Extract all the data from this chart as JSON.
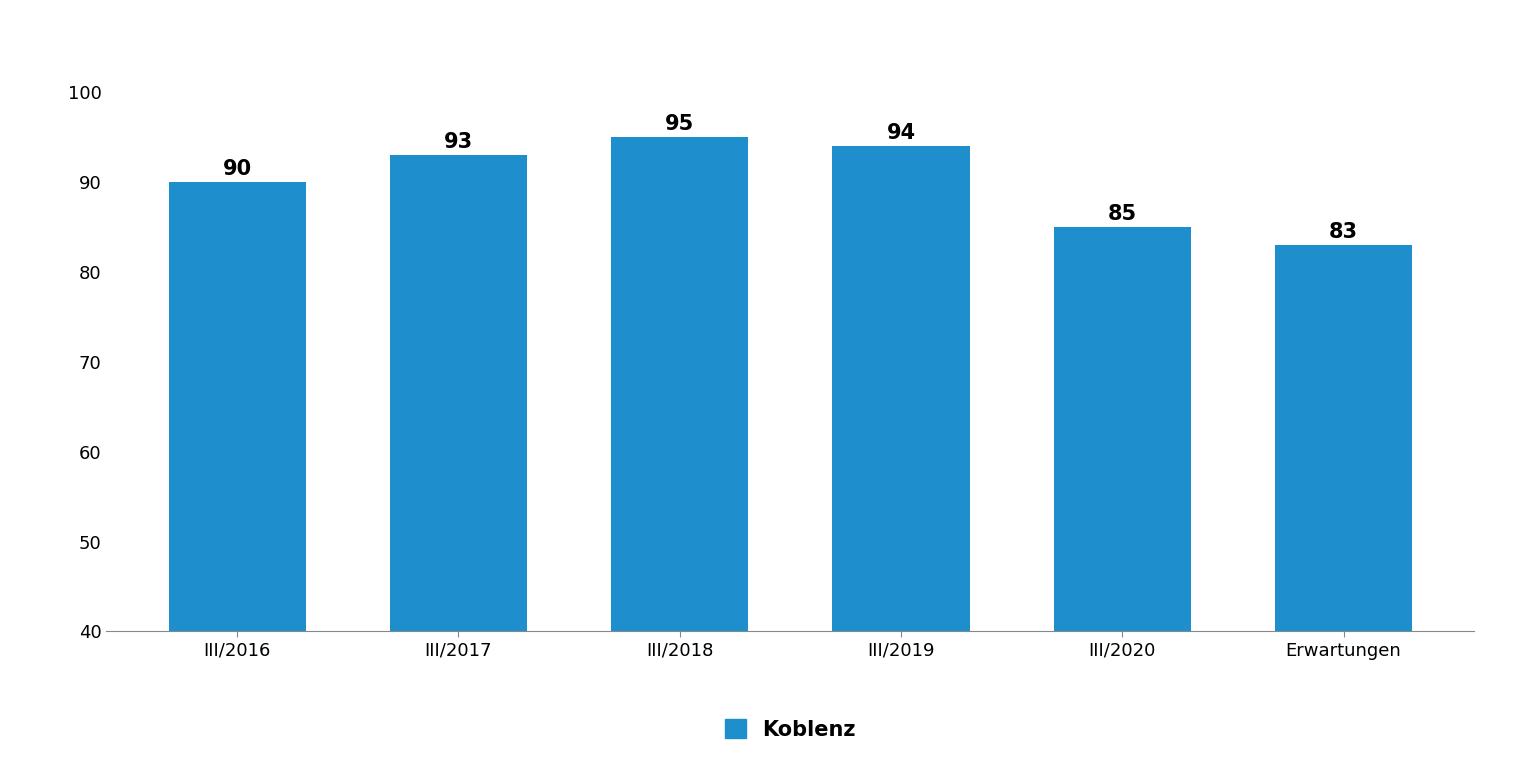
{
  "categories": [
    "III/2016",
    "III/2017",
    "III/2018",
    "III/2019",
    "III/2020",
    "Erwartungen"
  ],
  "values": [
    90,
    93,
    95,
    94,
    85,
    83
  ],
  "bar_color": "#1E8FCC",
  "ylim": [
    40,
    100
  ],
  "yticks": [
    40,
    50,
    60,
    70,
    80,
    90,
    100
  ],
  "tick_fontsize": 13,
  "value_label_fontsize": 15,
  "legend_label": "Koblenz",
  "legend_fontsize": 15,
  "background_color": "#ffffff",
  "bar_width": 0.62
}
